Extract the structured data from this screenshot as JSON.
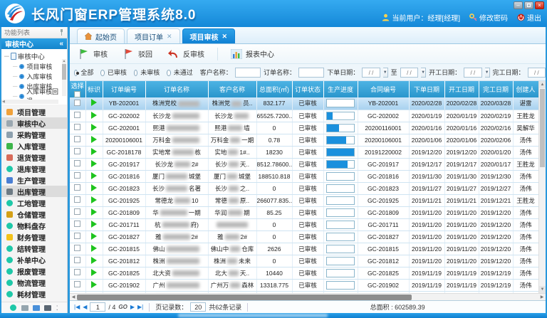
{
  "window": {
    "title": "长风门窗ERP管理系统8.0"
  },
  "header": {
    "user_label": "当前用户：经理[经理]",
    "change_password": "修改密码",
    "logout": "退出"
  },
  "sidebar": {
    "panel_title": "功能列表",
    "active_group": "审核中心",
    "collapse_glyph": "«",
    "tree": {
      "root": "审核中心",
      "items": [
        "项目审核",
        "入库审核",
        "出库审核",
        "入库审核回退"
      ]
    },
    "menu": [
      {
        "label": "项目管理",
        "icon": "project-icon",
        "color": "#f0a13a",
        "shape": "square",
        "selected": false
      },
      {
        "label": "审核中心",
        "icon": "audit-icon",
        "color": "#9aa7b0",
        "shape": "square",
        "selected": true
      },
      {
        "label": "采购管理",
        "icon": "purchase-icon",
        "color": "#8da0ae",
        "shape": "square",
        "selected": false
      },
      {
        "label": "入库管理",
        "icon": "inbound-icon",
        "color": "#3db54a",
        "shape": "square",
        "selected": false
      },
      {
        "label": "退货管理",
        "icon": "returns-icon",
        "color": "#d86b5a",
        "shape": "square",
        "selected": false
      },
      {
        "label": "退库管理",
        "icon": "stock-return-icon",
        "color": "#1ec8a8",
        "shape": "circle",
        "selected": false
      },
      {
        "label": "生产管理",
        "icon": "production-icon",
        "color": "#4a7fd4",
        "shape": "square",
        "selected": false
      },
      {
        "label": "出库管理",
        "icon": "outbound-icon",
        "color": "#6d7a84",
        "shape": "square",
        "selected": true
      },
      {
        "label": "工地管理",
        "icon": "site-icon",
        "color": "#1ec8a8",
        "shape": "circle",
        "selected": false
      },
      {
        "label": "仓储管理",
        "icon": "warehouse-icon",
        "color": "#d4a017",
        "shape": "square",
        "selected": false
      },
      {
        "label": "物料盘存",
        "icon": "inventory-icon",
        "color": "#1ec8a8",
        "shape": "circle",
        "selected": false
      },
      {
        "label": "财务管理",
        "icon": "finance-icon",
        "color": "#f3c21a",
        "shape": "square",
        "selected": false
      },
      {
        "label": "结转管理",
        "icon": "carryover-icon",
        "color": "#1ec8a8",
        "shape": "circle",
        "selected": false
      },
      {
        "label": "补单中心",
        "icon": "reorder-icon",
        "color": "#1ec8a8",
        "shape": "circle",
        "selected": false
      },
      {
        "label": "报废管理",
        "icon": "scrap-icon",
        "color": "#1ec8a8",
        "shape": "circle",
        "selected": false
      },
      {
        "label": "物流管理",
        "icon": "logistics-icon",
        "color": "#1ec8a8",
        "shape": "circle",
        "selected": false
      },
      {
        "label": "耗材管理",
        "icon": "consumables-icon",
        "color": "#1ec8a8",
        "shape": "circle",
        "selected": false
      }
    ]
  },
  "tabs": [
    {
      "label": "起始页",
      "active": false,
      "closable": false
    },
    {
      "label": "项目订单",
      "active": false,
      "closable": true
    },
    {
      "label": "项目审核",
      "active": true,
      "closable": true
    }
  ],
  "toolbar": {
    "buttons": [
      {
        "label": "审核",
        "icon": "green-flag-icon"
      },
      {
        "label": "驳回",
        "icon": "red-flag-icon"
      },
      {
        "label": "反审核",
        "icon": "undo-arrow-icon"
      },
      {
        "label": "报表中心",
        "icon": "report-chart-icon"
      }
    ]
  },
  "filters": {
    "radios": [
      {
        "label": "全部",
        "checked": true
      },
      {
        "label": "已审核",
        "checked": false
      },
      {
        "label": "未审核",
        "checked": false
      },
      {
        "label": "未通过",
        "checked": false
      }
    ],
    "customer_label": "客户名称：",
    "order_label": "订单名称：",
    "order_date_label": "下单日期：",
    "to_label": "至",
    "start_date_label": "开工日期：",
    "finish_date_label": "完工日期：",
    "date_placeholder": "/    /"
  },
  "table": {
    "columns": [
      "选择",
      "标识",
      "订单编号",
      "订单名称",
      "客户名称",
      "总面积(㎡)",
      "订单状态",
      "生产进度",
      "合同编号",
      "下单日期",
      "开工日期",
      "完工日期",
      "创建人"
    ],
    "rows": [
      {
        "selected": true,
        "order_no": "YB-202001",
        "name_pre": "株洲党校",
        "name_suf": "",
        "cust_pre": "株洲党",
        "cust_suf": "员..",
        "area": "832.177",
        "status": "已审核",
        "progress": 0,
        "contract": "YB-202001",
        "order_date": "2020/02/28",
        "start_date": "2020/02/28",
        "finish_date": "2020/03/28",
        "creator": "谌雷"
      },
      {
        "selected": false,
        "order_no": "GC-202002",
        "name_pre": "长沙龙",
        "name_suf": "",
        "cust_pre": "长沙龙",
        "cust_suf": "",
        "area": "65525.7200..",
        "status": "已审核",
        "progress": 22,
        "contract": "GC-202002",
        "order_date": "2020/01/19",
        "start_date": "2020/01/19",
        "finish_date": "2020/02/19",
        "creator": "王胜龙"
      },
      {
        "selected": false,
        "order_no": "GC-202001",
        "name_pre": "熙港",
        "name_suf": "",
        "cust_pre": "熙港",
        "cust_suf": "墙",
        "area": "0",
        "status": "已审核",
        "progress": 45,
        "contract": "20200116001",
        "order_date": "2020/01/16",
        "start_date": "2020/01/16",
        "finish_date": "2020/02/16",
        "creator": "吴解华"
      },
      {
        "selected": false,
        "order_no": "20200106001",
        "name_pre": "万科金",
        "name_suf": "",
        "cust_pre": "万科金",
        "cust_suf": "一期",
        "area": "0.78",
        "status": "已审核",
        "progress": 70,
        "contract": "20200106001",
        "order_date": "2020/01/06",
        "start_date": "2020/01/06",
        "finish_date": "2020/02/06",
        "creator": "汤伟"
      },
      {
        "selected": false,
        "order_no": "GC-2018178",
        "name_pre": "实地常",
        "name_suf": "栋",
        "cust_pre": "实地",
        "cust_suf": "1#..",
        "area": "18230",
        "status": "已审核",
        "progress": 100,
        "contract": "20191220002",
        "order_date": "2019/12/20",
        "start_date": "2019/12/20",
        "finish_date": "2020/01/20",
        "creator": "汤伟"
      },
      {
        "selected": false,
        "order_no": "GC-201917",
        "name_pre": "长沙龙",
        "name_suf": "2#",
        "cust_pre": "长沙",
        "cust_suf": "天..",
        "area": "8512.78600..",
        "status": "已审核",
        "progress": 75,
        "contract": "GC-201917",
        "order_date": "2019/12/17",
        "start_date": "2019/12/17",
        "finish_date": "2020/01/17",
        "creator": "王胜龙"
      },
      {
        "selected": false,
        "order_no": "GC-201816",
        "name_pre": "厦门",
        "name_suf": "城堡",
        "cust_pre": "厦门",
        "cust_suf": "城堡",
        "area": "188510.818",
        "status": "已审核",
        "progress": 0,
        "contract": "GC-201816",
        "order_date": "2019/11/30",
        "start_date": "2019/11/30",
        "finish_date": "2019/12/30",
        "creator": "汤伟"
      },
      {
        "selected": false,
        "order_no": "GC-201823",
        "name_pre": "长沙",
        "name_suf": "名著",
        "cust_pre": "长沙",
        "cust_suf": "之..",
        "area": "0",
        "status": "已审核",
        "progress": 0,
        "contract": "GC-201823",
        "order_date": "2019/11/27",
        "start_date": "2019/11/27",
        "finish_date": "2019/12/27",
        "creator": "汤伟"
      },
      {
        "selected": false,
        "order_no": "GC-201925",
        "name_pre": "常德龙",
        "name_suf": "10",
        "cust_pre": "常德",
        "cust_suf": "原..",
        "area": "266077.835..",
        "status": "已审核",
        "progress": 0,
        "contract": "GC-201925",
        "order_date": "2019/11/21",
        "start_date": "2019/11/21",
        "finish_date": "2019/12/21",
        "creator": "王胜龙"
      },
      {
        "selected": false,
        "order_no": "GC-201809",
        "name_pre": "华",
        "name_suf": "一期",
        "cust_pre": "华润",
        "cust_suf": "期",
        "area": "85.25",
        "status": "已审核",
        "progress": 0,
        "contract": "GC-201809",
        "order_date": "2019/11/20",
        "start_date": "2019/11/20",
        "finish_date": "2019/12/20",
        "creator": "汤伟"
      },
      {
        "selected": false,
        "order_no": "GC-201711",
        "name_pre": "杭",
        "name_suf": "府)",
        "cust_pre": "",
        "cust_suf": "",
        "area": "0",
        "status": "已审核",
        "progress": 0,
        "contract": "GC-201711",
        "order_date": "2019/11/20",
        "start_date": "2019/11/20",
        "finish_date": "2019/12/20",
        "creator": "汤伟"
      },
      {
        "selected": false,
        "order_no": "GC-201827",
        "name_pre": "雅",
        "name_suf": "2#",
        "cust_pre": "雅",
        "cust_suf": "2#",
        "area": "0",
        "status": "已审核",
        "progress": 0,
        "contract": "GC-201827",
        "order_date": "2019/11/20",
        "start_date": "2019/11/20",
        "finish_date": "2019/12/20",
        "creator": "汤伟"
      },
      {
        "selected": false,
        "order_no": "GC-201815",
        "name_pre": "佛山",
        "name_suf": "",
        "cust_pre": "佛山中",
        "cust_suf": "仓库",
        "area": "2626",
        "status": "已审核",
        "progress": 0,
        "contract": "GC-201815",
        "order_date": "2019/11/20",
        "start_date": "2019/11/20",
        "finish_date": "2019/12/20",
        "creator": "汤伟"
      },
      {
        "selected": false,
        "order_no": "GC-201812",
        "name_pre": "株洲",
        "name_suf": "",
        "cust_pre": "株洲",
        "cust_suf": "未来",
        "area": "0",
        "status": "已审核",
        "progress": 0,
        "contract": "GC-201812",
        "order_date": "2019/11/20",
        "start_date": "2019/11/20",
        "finish_date": "2019/12/20",
        "creator": "汤伟"
      },
      {
        "selected": false,
        "order_no": "GC-201825",
        "name_pre": "北大资",
        "name_suf": "",
        "cust_pre": "北大",
        "cust_suf": "天..",
        "area": "10440",
        "status": "已审核",
        "progress": 0,
        "contract": "GC-201825",
        "order_date": "2019/11/19",
        "start_date": "2019/11/19",
        "finish_date": "2019/12/19",
        "creator": "汤伟"
      },
      {
        "selected": false,
        "order_no": "GC-201902",
        "name_pre": "广州",
        "name_suf": "",
        "cust_pre": "广州万",
        "cust_suf": "森林",
        "area": "13318.775",
        "status": "已审核",
        "progress": 0,
        "contract": "GC-201902",
        "order_date": "2019/11/19",
        "start_date": "2019/11/19",
        "finish_date": "2019/12/19",
        "creator": "汤伟"
      },
      {
        "selected": false,
        "partial": true,
        "order_no": "",
        "name_pre": "",
        "name_suf": "",
        "cust_pre": "",
        "cust_suf": "",
        "area": "",
        "status": "",
        "progress": 0,
        "contract": "",
        "order_date": "",
        "start_date": "",
        "finish_date": "",
        "creator": ""
      }
    ]
  },
  "pagination": {
    "page": "1",
    "total_pages": "/ 4",
    "go_label": "GO",
    "page_size_label": "页记录数：",
    "page_size": "20",
    "records_label": "共62条记录",
    "total_area_label": "总面积 : 602589.39"
  },
  "colors": {
    "accent": "#1a8fdc",
    "header_blue": "#1e96e0",
    "table_header": "#2f9ed6",
    "selected_row": "#b5d9f3",
    "progress_fill": "#1a90dd",
    "approve_green": "#1ec41e",
    "reject_red": "#d93b2b"
  }
}
